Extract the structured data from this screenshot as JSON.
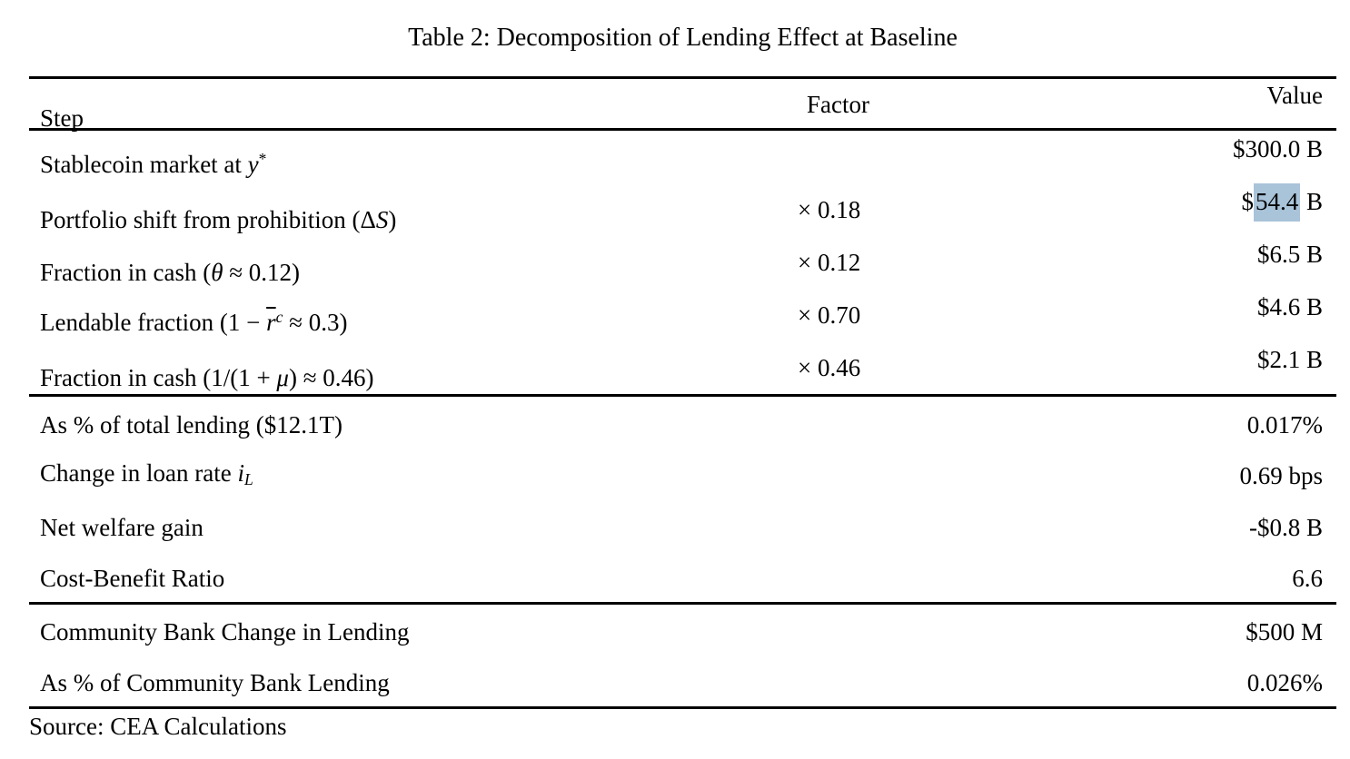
{
  "title": "Table 2: Decomposition of Lending Effect at Baseline",
  "source": "Source: CEA Calculations",
  "highlight_color": "#a9c3d9",
  "header": {
    "step": "Step",
    "factor": "Factor",
    "value": "Value"
  },
  "sections": [
    {
      "name": "decomposition",
      "rows": [
        {
          "step": [
            {
              "t": "Stablecoin market at "
            },
            {
              "t": "y",
              "i": true
            },
            {
              "t": "*",
              "sup": true
            }
          ],
          "factor": null,
          "value": [
            {
              "t": "$300.0 B"
            }
          ]
        },
        {
          "step": [
            {
              "t": "Portfolio shift from prohibition (Δ"
            },
            {
              "t": "S",
              "i": true
            },
            {
              "t": ")"
            }
          ],
          "factor": "× 0.18",
          "value": [
            {
              "t": "$"
            },
            {
              "t": "54.4",
              "hl": true
            },
            {
              "t": " B"
            }
          ]
        },
        {
          "step": [
            {
              "t": "Fraction in cash ("
            },
            {
              "t": "θ",
              "i": true
            },
            {
              "t": " ≈ 0.12)"
            }
          ],
          "factor": "× 0.12",
          "value": [
            {
              "t": "$6.5 B"
            }
          ]
        },
        {
          "step": [
            {
              "t": "Lendable fraction (1 − "
            },
            {
              "t": "r",
              "i": true,
              "bar": true
            },
            {
              "t": "c",
              "i": true,
              "sup": true
            },
            {
              "t": " ≈ 0.3)"
            }
          ],
          "factor": "× 0.70",
          "value": [
            {
              "t": "$4.6 B"
            }
          ]
        },
        {
          "step": [
            {
              "t": "Fraction in cash (1/(1 + "
            },
            {
              "t": "μ",
              "i": true
            },
            {
              "t": ") ≈ 0.46)"
            }
          ],
          "factor": "× 0.46",
          "value": [
            {
              "t": "$2.1 B"
            }
          ]
        }
      ]
    },
    {
      "name": "aggregates",
      "rows": [
        {
          "step": [
            {
              "t": "As % of total lending ($12.1T)"
            }
          ],
          "factor": null,
          "value": [
            {
              "t": "0.017%"
            }
          ]
        },
        {
          "step": [
            {
              "t": "Change in loan rate "
            },
            {
              "t": "i",
              "i": true
            },
            {
              "t": "L",
              "i": true,
              "sub": true
            }
          ],
          "factor": null,
          "value": [
            {
              "t": "0.69 bps"
            }
          ]
        },
        {
          "step": [
            {
              "t": "Net welfare gain"
            }
          ],
          "factor": null,
          "value": [
            {
              "t": "-$0.8 B"
            }
          ]
        },
        {
          "step": [
            {
              "t": "Cost-Benefit Ratio"
            }
          ],
          "factor": null,
          "value": [
            {
              "t": "6.6"
            }
          ]
        }
      ]
    },
    {
      "name": "community-banks",
      "rows": [
        {
          "step": [
            {
              "t": "Community Bank Change in Lending"
            }
          ],
          "factor": null,
          "value": [
            {
              "t": "$500 M"
            }
          ]
        },
        {
          "step": [
            {
              "t": "As % of Community Bank Lending"
            }
          ],
          "factor": null,
          "value": [
            {
              "t": "0.026%"
            }
          ]
        }
      ]
    }
  ]
}
